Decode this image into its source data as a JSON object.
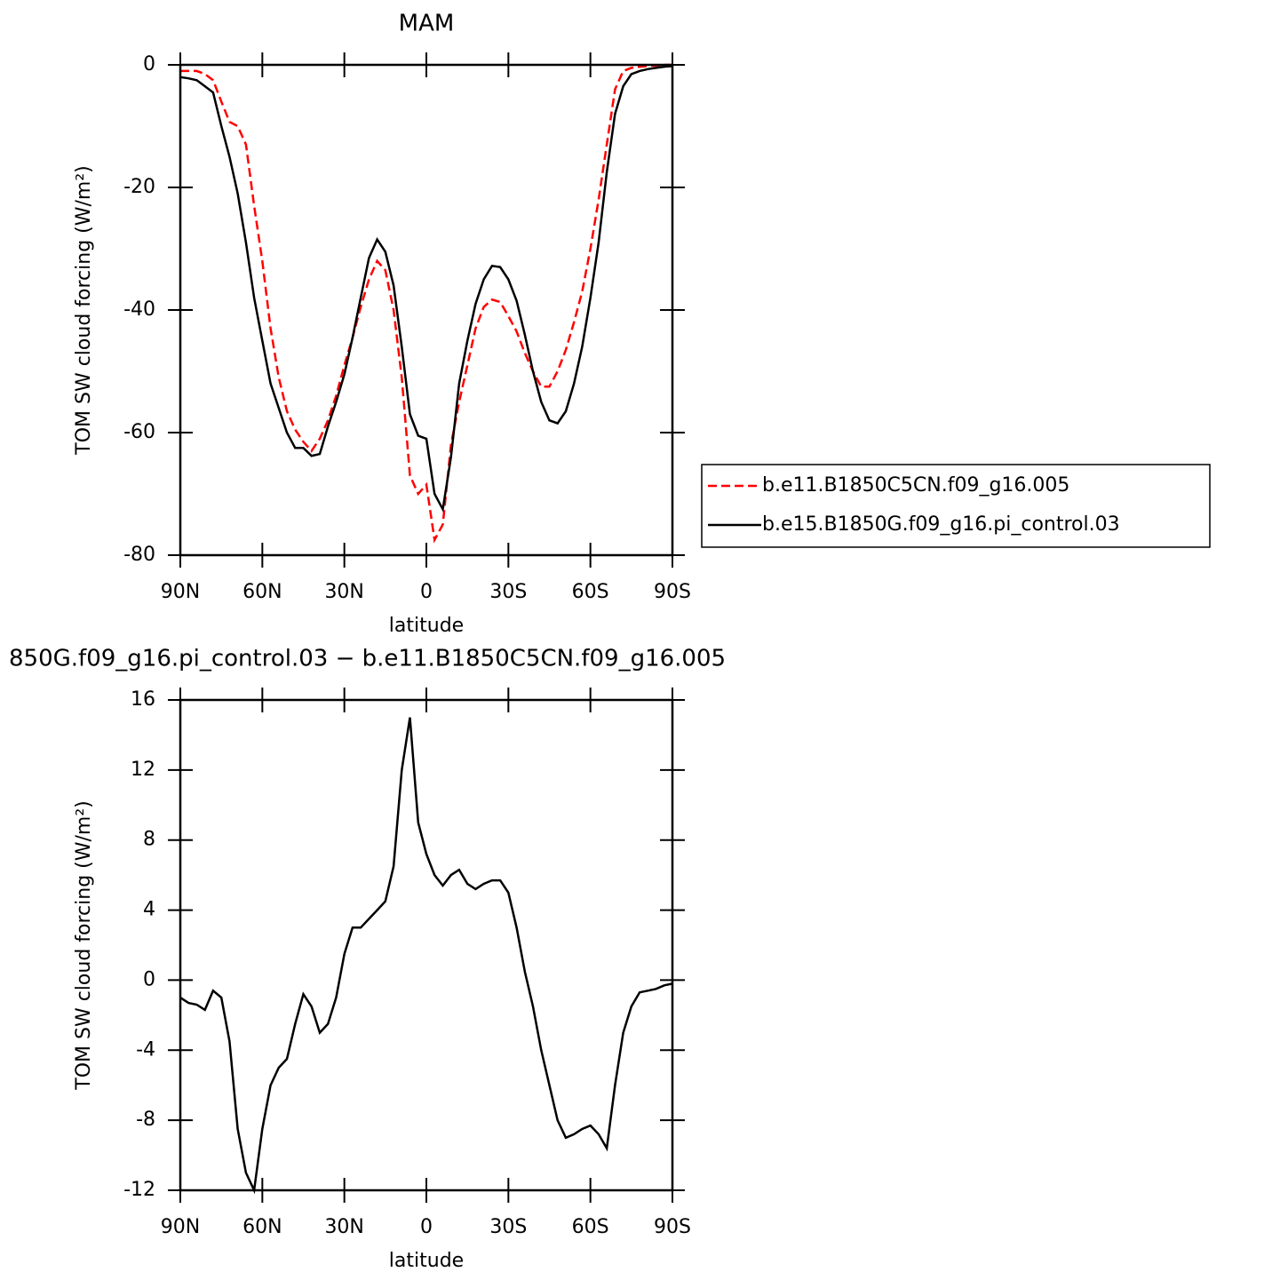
{
  "chart_data": [
    {
      "type": "line",
      "title": "MAM",
      "ylabel": "TOM SW cloud forcing (W/m²)",
      "xlabel": "latitude",
      "x": [
        90,
        87,
        84,
        81,
        78,
        75,
        72,
        69,
        66,
        63,
        60,
        57,
        54,
        51,
        48,
        45,
        42,
        39,
        36,
        33,
        30,
        27,
        24,
        21,
        18,
        15,
        12,
        9,
        6,
        3,
        0,
        -3,
        -6,
        -9,
        -12,
        -15,
        -18,
        -21,
        -24,
        -27,
        -30,
        -33,
        -36,
        -39,
        -42,
        -45,
        -48,
        -51,
        -54,
        -57,
        -60,
        -63,
        -66,
        -69,
        -72,
        -75,
        -78,
        -81,
        -84,
        -87,
        -90
      ],
      "series": [
        {
          "name": "b.e11.B1850C5CN.f09_g16.005",
          "color": "#ff0000",
          "line_style": "dashed",
          "values": [
            -1,
            -1,
            -1,
            -1.5,
            -2.5,
            -6,
            -9.3,
            -10,
            -13,
            -23,
            -32,
            -43,
            -51,
            -56.5,
            -59.5,
            -61.5,
            -63,
            -61,
            -58,
            -54,
            -49,
            -44.5,
            -39.5,
            -35,
            -32,
            -33.5,
            -40,
            -51,
            -67,
            -70,
            -68.5,
            -77.5,
            -75,
            -62,
            -55,
            -49,
            -43,
            -39.5,
            -38.3,
            -38.7,
            -41,
            -43.5,
            -47,
            -50,
            -52.5,
            -52.5,
            -50,
            -46.5,
            -42,
            -37,
            -30,
            -22,
            -13,
            -4,
            -1,
            -0.5,
            -0.3,
            -0.2,
            -0.1,
            0,
            0
          ]
        },
        {
          "name": "b.e15.B1850G.f09_g16.pi_control.03",
          "color": "#000000",
          "line_style": "solid",
          "values": [
            -2,
            -2.2,
            -2.5,
            -3.5,
            -4.5,
            -10,
            -15,
            -21,
            -29,
            -38,
            -45,
            -52,
            -56,
            -60,
            -62.5,
            -62.5,
            -63.8,
            -63.5,
            -59,
            -55,
            -50.5,
            -44.5,
            -38,
            -31.5,
            -28.5,
            -30.5,
            -36,
            -46,
            -57,
            -60.5,
            -61,
            -70,
            -72.5,
            -64,
            -52,
            -45,
            -39,
            -35,
            -32.8,
            -33,
            -35,
            -38.5,
            -44,
            -50,
            -55,
            -58,
            -58.5,
            -56.5,
            -52,
            -46,
            -38,
            -29,
            -17.5,
            -8,
            -3.5,
            -1.5,
            -1,
            -0.7,
            -0.5,
            -0.3,
            -0.2
          ]
        }
      ],
      "xlim": [
        90,
        -90
      ],
      "xticks": [
        {
          "value": 90,
          "label": "90N"
        },
        {
          "value": 60,
          "label": "60N"
        },
        {
          "value": 30,
          "label": "30N"
        },
        0,
        {
          "value": -30,
          "label": "30S"
        },
        {
          "value": -60,
          "label": "60S"
        },
        {
          "value": -90,
          "label": "90S"
        }
      ],
      "ylim": [
        -80,
        0
      ],
      "yticks": [
        -80,
        -60,
        -40,
        -20,
        0
      ],
      "legend": "right"
    },
    {
      "type": "line",
      "title": "850G.f09_g16.pi_control.03 − b.e11.B1850C5CN.f09_g16.005",
      "ylabel": "TOM SW cloud forcing (W/m²)",
      "xlabel": "latitude",
      "x": [
        90,
        87,
        84,
        81,
        78,
        75,
        72,
        69,
        66,
        63,
        60,
        57,
        54,
        51,
        48,
        45,
        42,
        39,
        36,
        33,
        30,
        27,
        24,
        21,
        18,
        15,
        12,
        9,
        6,
        3,
        0,
        -3,
        -6,
        -9,
        -12,
        -15,
        -18,
        -21,
        -24,
        -27,
        -30,
        -33,
        -36,
        -39,
        -42,
        -45,
        -48,
        -51,
        -54,
        -57,
        -60,
        -63,
        -66,
        -69,
        -72,
        -75,
        -78,
        -81,
        -84,
        -87,
        -90
      ],
      "series": [
        {
          "color": "#000000",
          "line_style": "solid",
          "values": [
            -1,
            -1.3,
            -1.4,
            -1.7,
            -0.6,
            -1,
            -3.5,
            -8.5,
            -11,
            -12,
            -8.5,
            -6,
            -5,
            -4.5,
            -2.5,
            -0.8,
            -1.5,
            -3,
            -2.5,
            -1,
            1.5,
            3,
            3,
            3.5,
            4,
            4.5,
            6.5,
            12,
            15,
            9,
            7.2,
            6,
            5.4,
            6,
            6.3,
            5.5,
            5.2,
            5.5,
            5.7,
            5.7,
            5,
            3,
            0.5,
            -1.5,
            -4,
            -6,
            -8,
            -9,
            -8.8,
            -8.5,
            -8.3,
            -8.8,
            -9.6,
            -6,
            -3,
            -1.5,
            -0.7,
            -0.6,
            -0.5,
            -0.3,
            -0.2
          ]
        }
      ],
      "xlim": [
        90,
        -90
      ],
      "xticks": [
        {
          "value": 90,
          "label": "90N"
        },
        {
          "value": 60,
          "label": "60N"
        },
        {
          "value": 30,
          "label": "30N"
        },
        0,
        {
          "value": -30,
          "label": "30S"
        },
        {
          "value": -60,
          "label": "60S"
        },
        {
          "value": -90,
          "label": "90S"
        }
      ],
      "ylim": [
        -12,
        16
      ],
      "yticks": [
        -12,
        -8,
        -4,
        0,
        4,
        8,
        12,
        16
      ]
    }
  ]
}
